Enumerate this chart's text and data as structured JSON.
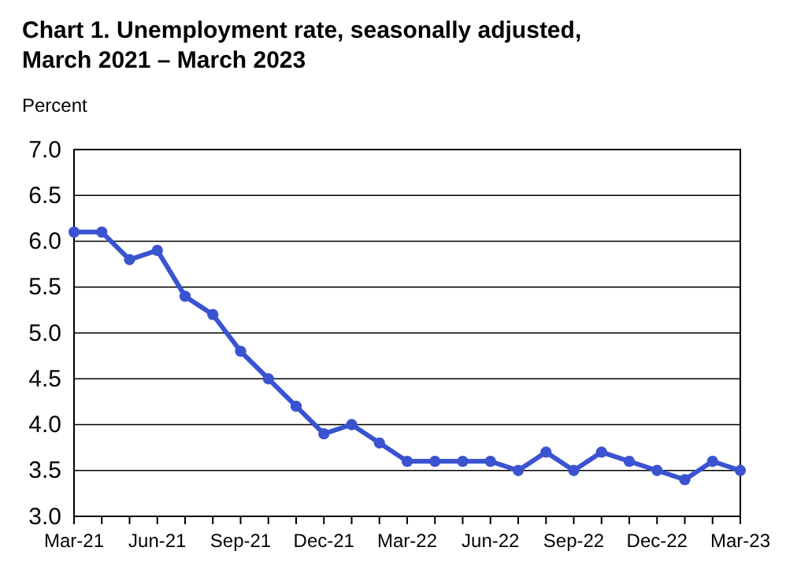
{
  "chart_data": {
    "type": "line",
    "title": "Chart 1. Unemployment rate, seasonally adjusted, March 2021 – March 2023",
    "ylabel": "Percent",
    "categories": [
      "Mar-21",
      null,
      null,
      "Jun-21",
      null,
      null,
      "Sep-21",
      null,
      null,
      "Dec-21",
      null,
      null,
      "Mar-22",
      null,
      null,
      "Jun-22",
      null,
      null,
      "Sep-22",
      null,
      null,
      "Dec-22",
      null,
      null,
      "Mar-23"
    ],
    "series": [
      {
        "color": "#3a53d0",
        "values": [
          6.1,
          6.1,
          5.8,
          5.9,
          5.4,
          5.2,
          4.8,
          4.5,
          4.2,
          3.9,
          4.0,
          3.8,
          3.6,
          3.6,
          3.6,
          3.6,
          3.5,
          3.7,
          3.5,
          3.7,
          3.6,
          3.5,
          3.4,
          3.6,
          3.5
        ]
      }
    ],
    "ylim": [
      3.0,
      7.0
    ],
    "yticks": [
      {
        "value": 3.0,
        "label": "3.0"
      },
      {
        "value": 3.5,
        "label": "3.5"
      },
      {
        "value": 4.0,
        "label": "4.0"
      },
      {
        "value": 4.5,
        "label": "4.5"
      },
      {
        "value": 5.0,
        "label": "5.0"
      },
      {
        "value": 5.5,
        "label": "5.5"
      },
      {
        "value": 6.0,
        "label": "6.0"
      },
      {
        "value": 6.5,
        "label": "6.5"
      },
      {
        "value": 7.0,
        "label": "7.0"
      }
    ],
    "grid": "y",
    "marker": "circle",
    "line_style": "solid"
  }
}
